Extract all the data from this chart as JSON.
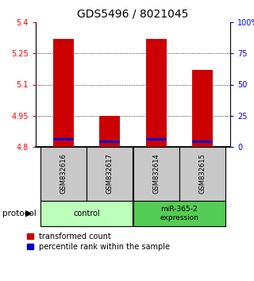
{
  "title": "GDS5496 / 8021045",
  "samples": [
    "GSM832616",
    "GSM832617",
    "GSM832614",
    "GSM832615"
  ],
  "transformed_count": [
    5.32,
    4.95,
    5.32,
    5.17
  ],
  "percentile_rank": [
    4.836,
    4.826,
    4.836,
    4.826
  ],
  "bar_bottom": 4.8,
  "ylim": [
    4.8,
    5.4
  ],
  "yticks": [
    4.8,
    4.95,
    5.1,
    5.25,
    5.4
  ],
  "ytick_labels": [
    "4.8",
    "4.95",
    "5.1",
    "5.25",
    "5.4"
  ],
  "right_ytick_pcts": [
    0,
    25,
    50,
    75,
    100
  ],
  "right_ytick_labels": [
    "0",
    "25",
    "50",
    "75",
    "100%"
  ],
  "bar_color": "#cc0000",
  "percentile_color": "#0000cc",
  "bar_width": 0.45,
  "sample_box_color": "#c8c8c8",
  "control_group_color": "#bbffbb",
  "expression_group_color": "#55cc55",
  "grid_color": "#888888",
  "title_fontsize": 10,
  "tick_fontsize": 7,
  "legend_fontsize": 7
}
